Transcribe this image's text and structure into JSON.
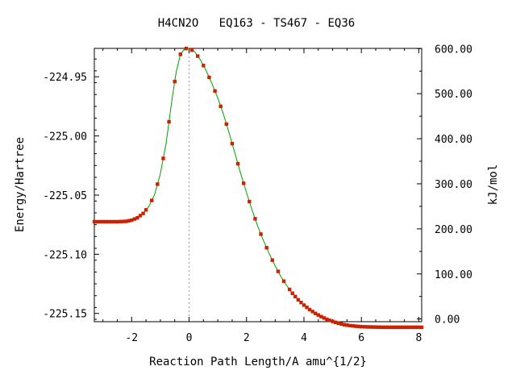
{
  "chart_data": {
    "type": "line",
    "title": "H4CN2O   EQ163 - TS467 - EQ36",
    "xlabel": "Reaction Path Length/A amu^{1/2}",
    "ylabel": "Energy/Hartree",
    "y2label": "kJ/mol",
    "xlim": [
      -3.3,
      8.1
    ],
    "ylim": [
      -225.157,
      -224.926
    ],
    "y2lim": [
      -6.0,
      600.5
    ],
    "x_ticks": [
      -2,
      0,
      2,
      4,
      6,
      8
    ],
    "y_ticks": [
      -224.95,
      -225.0,
      -225.05,
      -225.1,
      -225.15
    ],
    "y_tick_labels": [
      "-224.95",
      "-225.00",
      "-225.05",
      "-225.10",
      "-225.15"
    ],
    "y2_ticks": [
      0,
      100,
      200,
      300,
      400,
      500,
      600
    ],
    "y2_tick_labels": [
      "0.00",
      "100.00",
      "200.00",
      "300.00",
      "400.00",
      "500.00",
      "600.00"
    ],
    "ts_marker_x": 0,
    "grid": false,
    "colors": {
      "line": "#00a000",
      "points": "#cc2200",
      "ts_line": "#999999"
    },
    "series": [
      {
        "x": [
          -3.3,
          -2.5,
          -2.2,
          -2.0,
          -1.8,
          -1.6,
          -1.4,
          -1.2,
          -1.0,
          -0.8,
          -0.6,
          -0.45,
          -0.3,
          -0.15,
          0.0,
          0.2,
          0.4,
          0.6,
          0.8,
          1.0,
          1.2,
          1.4,
          1.6,
          1.8,
          2.0,
          2.2,
          2.4,
          2.6,
          2.8,
          3.0,
          3.2,
          3.4,
          3.6,
          3.8,
          4.0,
          4.2,
          4.4,
          4.6,
          4.8,
          5.0,
          5.2,
          5.4,
          5.6,
          5.8,
          6.0,
          6.2,
          6.4,
          6.6,
          6.8,
          7.0,
          7.5,
          8.1
        ],
        "y": [
          -225.0725,
          -225.0725,
          -225.0722,
          -225.0712,
          -225.0692,
          -225.0655,
          -225.0595,
          -225.0495,
          -225.032,
          -225.006,
          -224.97,
          -224.946,
          -224.931,
          -224.9262,
          -224.926,
          -224.929,
          -224.936,
          -224.945,
          -224.956,
          -224.968,
          -224.982,
          -224.998,
          -225.015,
          -225.032,
          -225.048,
          -225.063,
          -225.077,
          -225.089,
          -225.1,
          -225.11,
          -225.119,
          -225.1265,
          -225.133,
          -225.1385,
          -225.143,
          -225.1468,
          -225.15,
          -225.1527,
          -225.155,
          -225.1568,
          -225.1583,
          -225.1595,
          -225.1603,
          -225.1608,
          -225.1612,
          -225.1614,
          -225.1615,
          -225.1616,
          -225.1617,
          -225.1617,
          -225.1617,
          -225.1617
        ]
      }
    ]
  }
}
